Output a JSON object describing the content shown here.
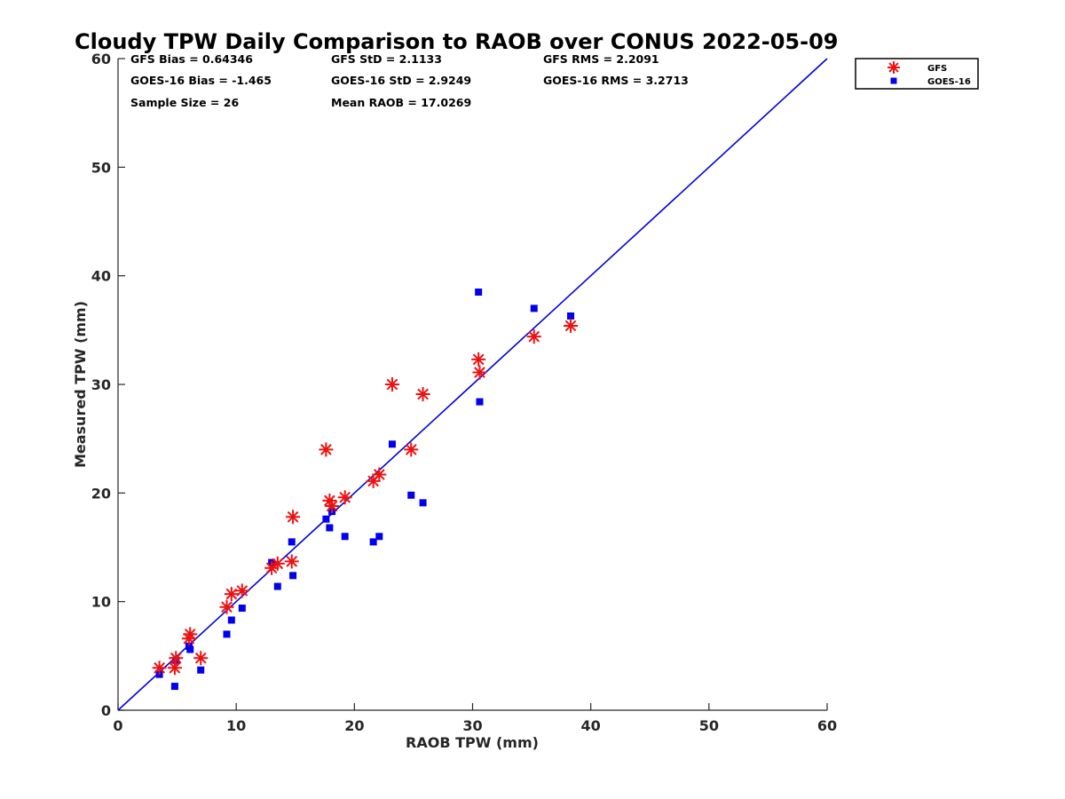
{
  "chart_data": {
    "type": "scatter",
    "title": "Cloudy TPW Daily Comparison to RAOB over CONUS 2022-05-09",
    "xlabel": "RAOB TPW (mm)",
    "ylabel": "Measured TPW (mm)",
    "xlim": [
      0,
      60
    ],
    "ylim": [
      0,
      60
    ],
    "xticks": [
      "0",
      "10",
      "20",
      "30",
      "40",
      "50",
      "60"
    ],
    "yticks": [
      "0",
      "10",
      "20",
      "30",
      "40",
      "50",
      "60"
    ],
    "grid": false,
    "legend_position": "top-right",
    "reference_line": {
      "type": "one-to-one",
      "from": [
        0,
        0
      ],
      "to": [
        60,
        60
      ],
      "color": "#0000dd"
    },
    "annotations": [
      "GFS Bias = 0.64346",
      "GFS StD = 2.1133",
      "GFS RMS = 2.2091",
      "GOES-16 Bias = -1.465",
      "GOES-16 StD = 2.9249",
      "GOES-16 RMS = 3.2713",
      "Sample Size = 26",
      "Mean RAOB = 17.0269"
    ],
    "series": [
      {
        "name": "GFS",
        "marker": "asterisk",
        "color": "#ee1111",
        "x": [
          3.5,
          4.8,
          4.9,
          6.0,
          6.1,
          7.0,
          9.2,
          9.6,
          10.5,
          13.0,
          13.5,
          14.7,
          14.8,
          17.6,
          17.9,
          18.1,
          19.2,
          21.6,
          22.1,
          23.2,
          24.8,
          25.8,
          30.5,
          30.6,
          35.2,
          38.3
        ],
        "y": [
          3.9,
          3.9,
          4.8,
          6.6,
          7.0,
          4.8,
          9.5,
          10.7,
          11.0,
          13.1,
          13.5,
          13.7,
          17.8,
          24.0,
          19.3,
          18.8,
          19.6,
          21.1,
          21.7,
          30.0,
          24.0,
          29.1,
          32.3,
          31.1,
          34.4,
          35.4
        ]
      },
      {
        "name": "GOES-16",
        "marker": "square",
        "color": "#0000ee",
        "x": [
          3.5,
          4.8,
          4.9,
          6.0,
          6.1,
          7.0,
          9.2,
          9.6,
          10.5,
          13.0,
          13.5,
          14.7,
          14.8,
          17.6,
          17.9,
          18.1,
          19.2,
          21.6,
          22.1,
          23.2,
          24.8,
          25.8,
          30.5,
          30.6,
          35.2,
          38.3
        ],
        "y": [
          3.3,
          2.2,
          4.6,
          5.9,
          5.6,
          3.7,
          7.0,
          8.3,
          9.4,
          13.6,
          11.4,
          15.5,
          12.4,
          17.6,
          16.8,
          18.3,
          16.0,
          15.5,
          16.0,
          24.5,
          19.8,
          19.1,
          38.5,
          28.4,
          37.0,
          36.3
        ]
      }
    ]
  }
}
